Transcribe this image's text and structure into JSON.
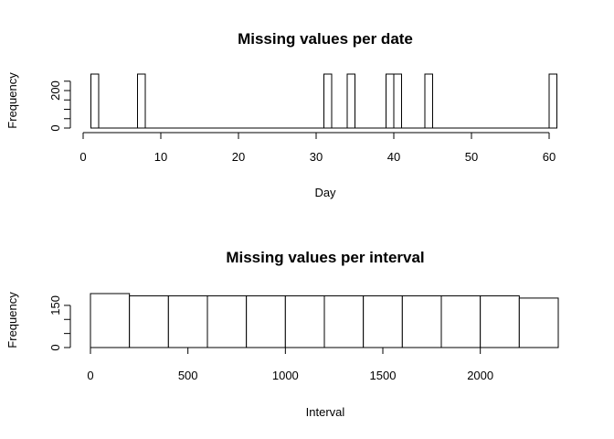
{
  "chart_data": [
    {
      "type": "bar",
      "title": "Missing values per date",
      "xlabel": "Day",
      "ylabel": "Frequency",
      "xlim": [
        0,
        61
      ],
      "ylim": [
        0,
        288
      ],
      "x_ticks": [
        0,
        10,
        20,
        30,
        40,
        50,
        60
      ],
      "y_ticks": [
        0,
        200
      ],
      "y_minor_ticks": [
        50,
        100,
        150,
        250
      ],
      "bins": [
        {
          "start": 1,
          "end": 2,
          "value": 288
        },
        {
          "start": 7,
          "end": 8,
          "value": 288
        },
        {
          "start": 31,
          "end": 32,
          "value": 288
        },
        {
          "start": 34,
          "end": 35,
          "value": 288
        },
        {
          "start": 39,
          "end": 40,
          "value": 288
        },
        {
          "start": 40,
          "end": 41,
          "value": 288
        },
        {
          "start": 44,
          "end": 45,
          "value": 288
        },
        {
          "start": 60,
          "end": 61,
          "value": 288
        }
      ]
    },
    {
      "type": "bar",
      "title": "Missing values per interval",
      "xlabel": "Interval",
      "ylabel": "Frequency",
      "xlim": [
        0,
        2400
      ],
      "ylim": [
        0,
        192
      ],
      "x_ticks": [
        0,
        500,
        1000,
        1500,
        2000
      ],
      "y_ticks": [
        0,
        150
      ],
      "y_minor_ticks": [
        50,
        100
      ],
      "bins": [
        {
          "start": 0,
          "end": 200,
          "value": 192
        },
        {
          "start": 200,
          "end": 400,
          "value": 184
        },
        {
          "start": 400,
          "end": 600,
          "value": 184
        },
        {
          "start": 600,
          "end": 800,
          "value": 184
        },
        {
          "start": 800,
          "end": 1000,
          "value": 184
        },
        {
          "start": 1000,
          "end": 1200,
          "value": 184
        },
        {
          "start": 1200,
          "end": 1400,
          "value": 184
        },
        {
          "start": 1400,
          "end": 1600,
          "value": 184
        },
        {
          "start": 1600,
          "end": 1800,
          "value": 184
        },
        {
          "start": 1800,
          "end": 2000,
          "value": 184
        },
        {
          "start": 2000,
          "end": 2200,
          "value": 184
        },
        {
          "start": 2200,
          "end": 2400,
          "value": 176
        }
      ]
    }
  ]
}
